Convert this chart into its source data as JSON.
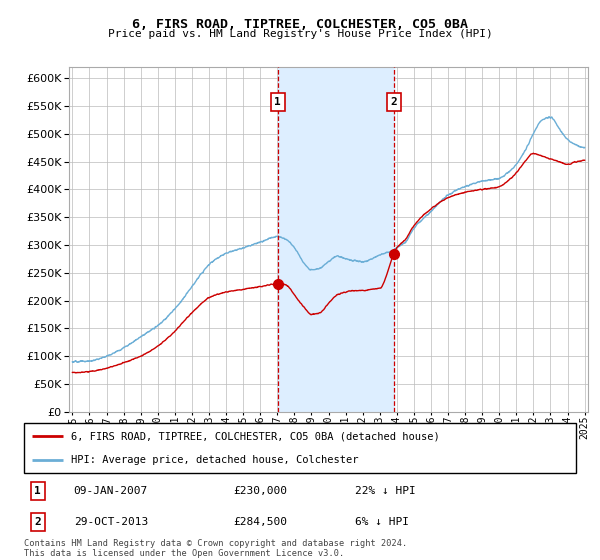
{
  "title": "6, FIRS ROAD, TIPTREE, COLCHESTER, CO5 0BA",
  "subtitle": "Price paid vs. HM Land Registry's House Price Index (HPI)",
  "hpi_label": "HPI: Average price, detached house, Colchester",
  "property_label": "6, FIRS ROAD, TIPTREE, COLCHESTER, CO5 0BA (detached house)",
  "sale1_date": "09-JAN-2007",
  "sale1_price": 230000,
  "sale1_hpi_pct": "22% ↓ HPI",
  "sale2_date": "29-OCT-2013",
  "sale2_price": 284500,
  "sale2_hpi_pct": "6% ↓ HPI",
  "footer": "Contains HM Land Registry data © Crown copyright and database right 2024.\nThis data is licensed under the Open Government Licence v3.0.",
  "hpi_color": "#6baed6",
  "property_color": "#cc0000",
  "sale_marker_color": "#cc0000",
  "vline_color": "#cc0000",
  "shade_color": "#ddeeff",
  "grid_color": "#bbbbbb",
  "background_color": "#ffffff",
  "ylim": [
    0,
    620000
  ],
  "yticks": [
    0,
    50000,
    100000,
    150000,
    200000,
    250000,
    300000,
    350000,
    400000,
    450000,
    500000,
    550000,
    600000
  ],
  "x_start_year": 1995,
  "x_end_year": 2025,
  "sale1_year": 2007.03,
  "sale2_year": 2013.83,
  "fig_width": 6.0,
  "fig_height": 5.6
}
